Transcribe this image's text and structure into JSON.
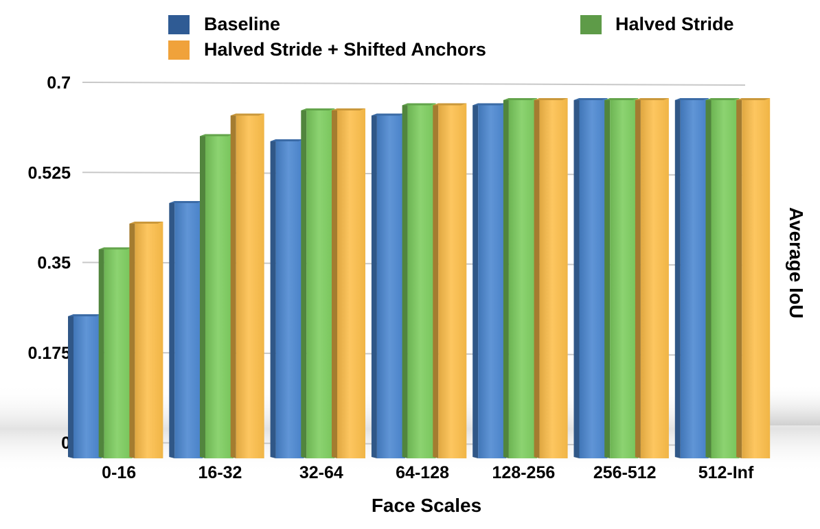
{
  "chart_data": {
    "type": "bar",
    "categories": [
      "0-16",
      "16-32",
      "32-64",
      "64-128",
      "128-256",
      "256-512",
      "512-Inf"
    ],
    "series": [
      {
        "name": "Baseline",
        "values": [
          0.26,
          0.48,
          0.6,
          0.65,
          0.67,
          0.68,
          0.68
        ]
      },
      {
        "name": "Halved Stride",
        "values": [
          0.39,
          0.61,
          0.66,
          0.67,
          0.68,
          0.68,
          0.68
        ]
      },
      {
        "name": "Halved Stride + Shifted Anchors",
        "values": [
          0.44,
          0.65,
          0.66,
          0.67,
          0.68,
          0.68,
          0.68
        ]
      }
    ],
    "title": "",
    "xlabel": "Face Scales",
    "ylabel": "Average IoU",
    "ylim": [
      0,
      0.7
    ],
    "yticks": [
      "0",
      "0.175",
      "0.35",
      "0.525",
      "0.7"
    ],
    "grid": true,
    "legend_position": "top",
    "colors": {
      "Baseline": "#4a86d0",
      "Halved Stride": "#7ccd5e",
      "Halved Stride + Shifted Anchors": "#fdbe4a"
    },
    "legend_colors": {
      "Baseline": "#2f5b94",
      "Halved Stride": "#5e9b48",
      "Halved Stride + Shifted Anchors": "#f0a23b"
    }
  }
}
